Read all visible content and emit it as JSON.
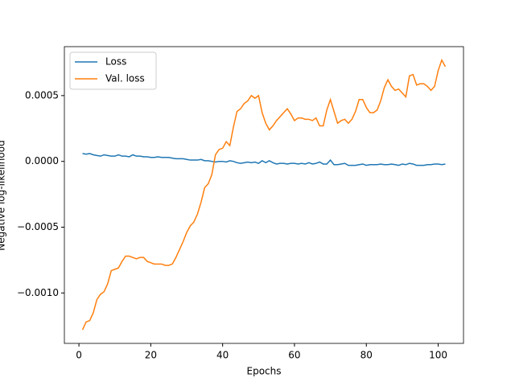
{
  "chart_data": {
    "type": "line",
    "xlabel": "Epochs",
    "ylabel": "Negative log-likelihood",
    "x": [
      1,
      2,
      3,
      4,
      5,
      6,
      7,
      8,
      9,
      10,
      11,
      12,
      13,
      14,
      15,
      16,
      17,
      18,
      19,
      20,
      21,
      22,
      23,
      24,
      25,
      26,
      27,
      28,
      29,
      30,
      31,
      32,
      33,
      34,
      35,
      36,
      37,
      38,
      39,
      40,
      41,
      42,
      43,
      44,
      45,
      46,
      47,
      48,
      49,
      50,
      51,
      52,
      53,
      54,
      55,
      56,
      57,
      58,
      59,
      60,
      61,
      62,
      63,
      64,
      65,
      66,
      67,
      68,
      69,
      70,
      71,
      72,
      73,
      74,
      75,
      76,
      77,
      78,
      79,
      80,
      81,
      82,
      83,
      84,
      85,
      86,
      87,
      88,
      89,
      90,
      91,
      92,
      93,
      94,
      95,
      96,
      97,
      98,
      99,
      100,
      101,
      102
    ],
    "series": [
      {
        "name": "Loss",
        "color": "#1f77b4",
        "values": [
          6e-05,
          5.5e-05,
          6e-05,
          5e-05,
          4.5e-05,
          4e-05,
          5e-05,
          4.5e-05,
          4e-05,
          4e-05,
          5e-05,
          4e-05,
          4e-05,
          3.5e-05,
          5e-05,
          4e-05,
          4e-05,
          3.5e-05,
          3.5e-05,
          3e-05,
          3e-05,
          3.5e-05,
          3e-05,
          3e-05,
          3e-05,
          2.5e-05,
          2e-05,
          2e-05,
          2e-05,
          1.5e-05,
          1e-05,
          1e-05,
          1e-05,
          1.5e-05,
          5e-06,
          5e-06,
          0,
          -5e-06,
          0,
          0,
          -5e-06,
          5e-06,
          0,
          -1e-05,
          -1.5e-05,
          -1e-05,
          -5e-06,
          -1e-05,
          -5e-06,
          -1.5e-05,
          5e-06,
          -1e-05,
          5e-06,
          -1e-05,
          -2e-05,
          -1.5e-05,
          -1.5e-05,
          -2e-05,
          -1.5e-05,
          -1.5e-05,
          -2e-05,
          -1.5e-05,
          -2e-05,
          -1e-05,
          -2e-05,
          -1.5e-05,
          -5e-06,
          -2e-05,
          -2e-05,
          1e-05,
          -2.5e-05,
          -2.5e-05,
          -2e-05,
          -1.5e-05,
          -3e-05,
          -3e-05,
          -3e-05,
          -2.5e-05,
          -2e-05,
          -3e-05,
          -2.5e-05,
          -2.5e-05,
          -2.5e-05,
          -2e-05,
          -2.5e-05,
          -2.5e-05,
          -2e-05,
          -2.5e-05,
          -3e-05,
          -2e-05,
          -2.5e-05,
          -1.5e-05,
          -2e-05,
          -3e-05,
          -3e-05,
          -3e-05,
          -2.5e-05,
          -2.5e-05,
          -2e-05,
          -2e-05,
          -2.5e-05,
          -2e-05
        ]
      },
      {
        "name": "Val. loss",
        "color": "#ff7f0e",
        "values": [
          -0.00128,
          -0.00122,
          -0.00121,
          -0.00115,
          -0.00105,
          -0.00101,
          -0.00099,
          -0.00093,
          -0.00083,
          -0.00082,
          -0.00081,
          -0.00076,
          -0.00072,
          -0.00072,
          -0.00073,
          -0.00074,
          -0.00073,
          -0.00073,
          -0.00076,
          -0.00077,
          -0.00078,
          -0.00078,
          -0.00078,
          -0.00079,
          -0.00079,
          -0.00078,
          -0.00073,
          -0.00067,
          -0.00061,
          -0.00054,
          -0.00049,
          -0.00046,
          -0.0004,
          -0.00031,
          -0.0002,
          -0.00017,
          -0.0001,
          5e-05,
          9e-05,
          0.0001,
          0.00015,
          0.00012,
          0.00026,
          0.00038,
          0.0004,
          0.00044,
          0.00046,
          0.0005,
          0.00048,
          0.0005,
          0.00037,
          0.00029,
          0.00024,
          0.00027,
          0.00031,
          0.00034,
          0.00037,
          0.0004,
          0.00036,
          0.00031,
          0.00033,
          0.00033,
          0.00032,
          0.00032,
          0.00031,
          0.00033,
          0.00027,
          0.00027,
          0.00039,
          0.00047,
          0.00038,
          0.00029,
          0.00031,
          0.00032,
          0.00029,
          0.00032,
          0.00038,
          0.00047,
          0.00047,
          0.00041,
          0.00037,
          0.00037,
          0.00039,
          0.00046,
          0.00056,
          0.00062,
          0.00057,
          0.00054,
          0.00055,
          0.00052,
          0.00049,
          0.00065,
          0.00066,
          0.00058,
          0.00059,
          0.00059,
          0.00057,
          0.00054,
          0.00057,
          0.00069,
          0.00077,
          0.00072
        ]
      }
    ],
    "xlim": [
      -4.05,
      107.05
    ],
    "xticks": [
      0,
      20,
      40,
      60,
      80,
      100
    ],
    "ylim": [
      -0.001383,
      0.000872
    ],
    "yticks": [
      {
        "value": -0.001,
        "label": "−0.0010"
      },
      {
        "value": -0.0005,
        "label": "−0.0005"
      },
      {
        "value": 0,
        "label": "0.0000"
      },
      {
        "value": 0.0005,
        "label": "0.0005"
      }
    ],
    "legend": "upper left"
  }
}
